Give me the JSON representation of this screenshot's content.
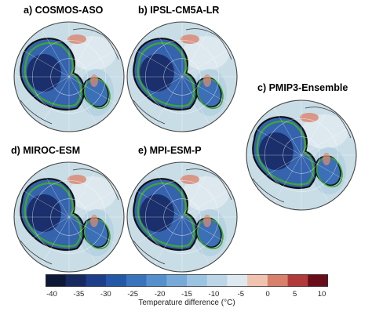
{
  "panels": [
    {
      "label": "a) COSMOS-ASO"
    },
    {
      "label": "b) IPSL-CM5A-LR"
    },
    {
      "label": "c) PMIP3-Ensemble"
    },
    {
      "label": "d) MIROC-ESM"
    },
    {
      "label": "e) MPI-ESM-P"
    }
  ],
  "colorbar": {
    "label": "Temperature difference (°C)",
    "ticks": [
      "-40",
      "-35",
      "-30",
      "-25",
      "-20",
      "-15",
      "-10",
      "-5",
      "0",
      "5",
      "10"
    ],
    "colors": [
      "#0d1838",
      "#17295e",
      "#1d3f8a",
      "#2358a8",
      "#3a73bd",
      "#5590cc",
      "#77aad8",
      "#9bc3e2",
      "#bcd6e8",
      "#dde9ef",
      "#f0c3b0",
      "#d9806a",
      "#b33a3a",
      "#6a0d1a"
    ],
    "range": [
      -40,
      10
    ]
  },
  "legend_colors": {
    "ocean": "#c9dde6",
    "ice_sheet_dark": "#1a2f6b",
    "ice_sheet_mid": "#3563ad",
    "green_outline": "#3fa33a",
    "black_outline": "#111111",
    "warm": "#d98a74"
  }
}
